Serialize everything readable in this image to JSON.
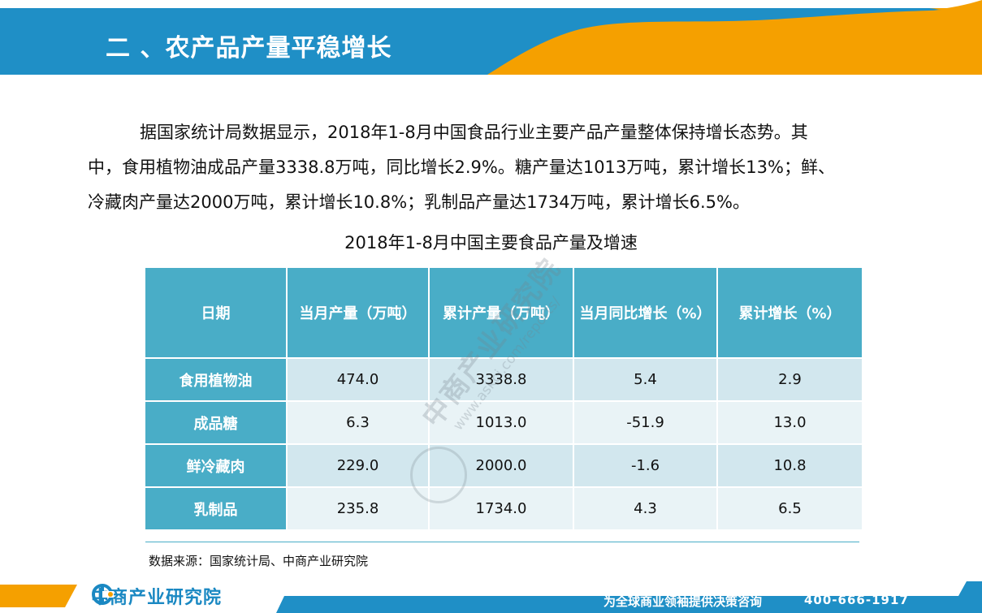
{
  "header": {
    "title": "二 、农产品产量平稳增长"
  },
  "paragraph": {
    "lines": [
      "据国家统计局数据显示，2018年1-8月中国食品行业主要产品产量整体保持增长态势。其",
      "中，食用植物油成品产量3338.8万吨，同比增长2.9%。糖产量达1013万吨，累计增长13%；鲜、",
      "冷藏肉产量达2000万吨，累计增长10.8%；乳制品产量达1734万吨，累计增长6.5%。"
    ]
  },
  "table": {
    "caption": "2018年1-8月中国主要食品产量及增速",
    "headers": [
      "日期",
      "当月产量（万吨）",
      "累计产量（万吨）",
      "当月同比增长（%）",
      "累计增长（%）"
    ],
    "rows": [
      [
        "食用植物油",
        "474.0",
        "3338.8",
        "5.4",
        "2.9"
      ],
      [
        "成品糖",
        "6.3",
        "1013.0",
        "-51.9",
        "13.0"
      ],
      [
        "鲜冷藏肉",
        "229.0",
        "2000.0",
        "-1.6",
        "10.8"
      ],
      [
        "乳制品",
        "235.8",
        "1734.0",
        "4.3",
        "6.5"
      ]
    ]
  },
  "source": "数据来源：国家统计局、中商产业研究院",
  "watermark": {
    "name": "中商产业研究院",
    "url": "www.askci.com/reports/"
  },
  "footer": {
    "logo_text": "中商产业研究院",
    "slogan": "为全球商业领袖提供决策咨询",
    "phone": "400-666-1917"
  },
  "colors": {
    "brand_blue": "#1a88c2",
    "header_blue": "#1f8fc6",
    "accent_orange": "#f5a000",
    "table_header": "#49adc7",
    "row_light": "#e9f3f6",
    "row_dark": "#d2e7ee"
  }
}
